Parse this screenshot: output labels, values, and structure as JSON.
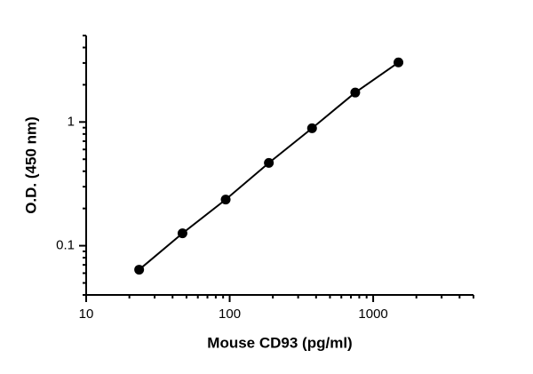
{
  "chart_data": {
    "type": "scatter",
    "x_label": "Mouse CD93 (pg/ml)",
    "y_label": "O.D. (450 nm)",
    "x_scale": "log",
    "y_scale": "log",
    "xlim": [
      10,
      5000
    ],
    "ylim": [
      0.04,
      5
    ],
    "xticks": [
      10,
      100,
      1000
    ],
    "yticks": [
      0.1,
      1
    ],
    "xminorticks": [
      20,
      30,
      40,
      50,
      60,
      70,
      80,
      90,
      200,
      300,
      400,
      500,
      600,
      700,
      800,
      900,
      2000,
      3000,
      4000,
      5000
    ],
    "yminorticks": [
      0.04,
      0.05,
      0.06,
      0.07,
      0.08,
      0.09,
      0.2,
      0.3,
      0.4,
      0.5,
      0.6,
      0.7,
      0.8,
      0.9,
      2,
      3,
      4,
      5
    ],
    "color": "#000000",
    "x": [
      23.4,
      46.9,
      93.8,
      187.5,
      375,
      750,
      1500
    ],
    "values": [
      0.064,
      0.126,
      0.236,
      0.467,
      0.89,
      1.73,
      3.03
    ]
  }
}
